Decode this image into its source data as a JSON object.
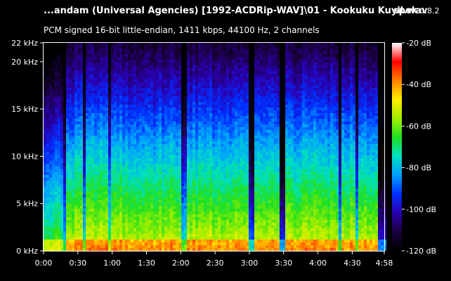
{
  "header": {
    "file_title": "...andam (Universal Agencies) [1992-ACDRip-WAV]\\01 - Kookuku Kuyil.wav",
    "app_name": "spek",
    "app_version": "0.8.2",
    "audio_info": "PCM signed 16-bit little-endian, 1411 kbps, 44100 Hz, 2 channels"
  },
  "chart_data": {
    "type": "heatmap",
    "x_axis": {
      "ticks": [
        "0:00",
        "0:30",
        "1:00",
        "1:30",
        "2:00",
        "2:30",
        "3:00",
        "3:30",
        "4:00",
        "4:30",
        "4:58"
      ],
      "tick_seconds": [
        0,
        30,
        60,
        90,
        120,
        150,
        180,
        210,
        240,
        270,
        298
      ],
      "range_seconds": [
        0,
        298
      ]
    },
    "y_axis": {
      "ticks": [
        "0 kHz",
        "5 kHz",
        "10 kHz",
        "15 kHz",
        "20 kHz",
        "22 kHz"
      ],
      "tick_khz": [
        0,
        5,
        10,
        15,
        20,
        22
      ],
      "range_khz": [
        0,
        22
      ]
    },
    "colorbar": {
      "ticks": [
        "-20 dB",
        "-40 dB",
        "-60 dB",
        "-80 dB",
        "-100 dB",
        "-120 dB"
      ],
      "tick_db": [
        -20,
        -40,
        -60,
        -80,
        -100,
        -120
      ],
      "range_db": [
        -120,
        -20
      ],
      "palette": [
        "#000000",
        "#1a0040",
        "#2a00b0",
        "#0030ff",
        "#00a0ff",
        "#00e0c0",
        "#20e020",
        "#a0ee00",
        "#ffee00",
        "#ff8000",
        "#ff0000",
        "#ffffff"
      ]
    }
  }
}
